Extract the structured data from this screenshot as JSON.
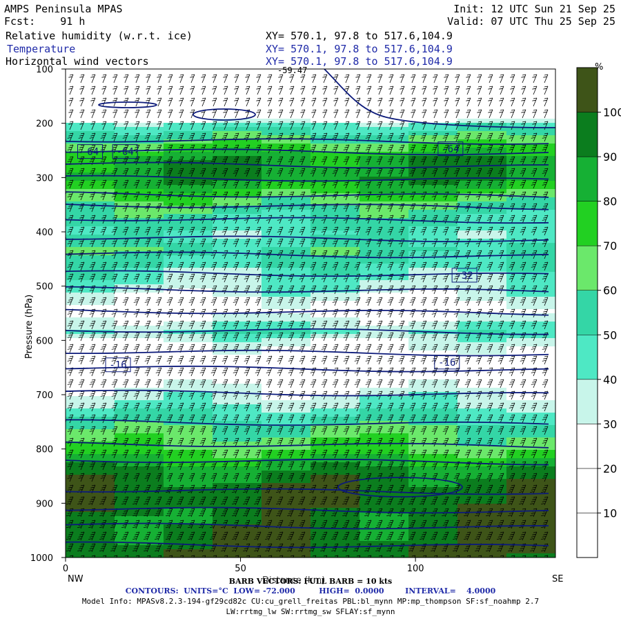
{
  "header": {
    "title": "AMPS Peninsula MPAS",
    "fcst": "Fcst:    91 h",
    "init": "Init: 12 UTC Sun 21 Sep 25",
    "valid": "Valid: 07 UTC Thu 25 Sep 25",
    "fields": [
      {
        "name": "Relative humidity (w.r.t. ice)",
        "xy": "XY= 570.1, 97.8 to 517.6,104.9",
        "color": "#000000"
      },
      {
        "name": "Temperature",
        "xy": "XY= 570.1, 97.8 to 517.6,104.9",
        "color": "#1f2aa8"
      },
      {
        "name": "Horizontal wind vectors",
        "xy": "XY= 570.1, 97.8 to 517.6,104.9",
        "color": "#000000"
      }
    ]
  },
  "chart_data": {
    "type": "heatmap",
    "title": "AMPS Peninsula MPAS",
    "xlabel": "Distance (km)",
    "ylabel": "Pressure (hPa)",
    "xlim": [
      0,
      140
    ],
    "ylim": [
      1000,
      100
    ],
    "x_ticks": [
      0,
      50,
      100
    ],
    "y_ticks": [
      100,
      200,
      300,
      400,
      500,
      600,
      700,
      800,
      900,
      1000
    ],
    "x_end_labels": {
      "left": "NW",
      "right": "SE"
    },
    "colorbar": {
      "unit": "%",
      "levels": [
        10,
        20,
        30,
        40,
        50,
        60,
        70,
        80,
        90,
        100
      ],
      "colors": [
        "#ffffff",
        "#ffffff",
        "#ffffff",
        "#c8f5ea",
        "#4ee8c4",
        "#34d6a6",
        "#6be86b",
        "#22d022",
        "#16b034",
        "#0b7d1e",
        "#3e5418"
      ]
    },
    "rh_profile": [
      {
        "p": 100,
        "rh": 5
      },
      {
        "p": 180,
        "rh": 10
      },
      {
        "p": 200,
        "rh": 45
      },
      {
        "p": 230,
        "rh": 65
      },
      {
        "p": 260,
        "rh": 85
      },
      {
        "p": 300,
        "rh": 90
      },
      {
        "p": 330,
        "rh": 70
      },
      {
        "p": 360,
        "rh": 55
      },
      {
        "p": 400,
        "rh": 45
      },
      {
        "p": 430,
        "rh": 55
      },
      {
        "p": 470,
        "rh": 45
      },
      {
        "p": 500,
        "rh": 38
      },
      {
        "p": 540,
        "rh": 20
      },
      {
        "p": 580,
        "rh": 45
      },
      {
        "p": 600,
        "rh": 30
      },
      {
        "p": 650,
        "rh": 15
      },
      {
        "p": 700,
        "rh": 35
      },
      {
        "p": 760,
        "rh": 60
      },
      {
        "p": 800,
        "rh": 72
      },
      {
        "p": 840,
        "rh": 92
      },
      {
        "p": 880,
        "rh": 100
      },
      {
        "p": 930,
        "rh": 95
      },
      {
        "p": 1000,
        "rh": 100
      }
    ],
    "temperature_contours": {
      "units": "°C",
      "interval": 4.0,
      "levels_p": [
        230,
        250,
        275,
        300,
        330,
        350,
        375,
        410,
        440,
        475,
        505,
        545,
        580,
        620,
        650,
        695,
        750,
        790,
        820,
        875,
        910,
        940,
        975
      ],
      "labels": [
        {
          "text": "-64",
          "x": 7,
          "p": 252
        },
        {
          "text": "-64",
          "x": 17,
          "p": 252
        },
        {
          "text": "-64",
          "x": 110,
          "p": 247
        },
        {
          "text": "-32",
          "x": 114,
          "p": 480
        },
        {
          "text": "-16",
          "x": 15,
          "p": 645
        },
        {
          "text": "-16",
          "x": 109,
          "p": 640
        }
      ],
      "low": -72.0,
      "high": 0.0
    },
    "top_label": "-59.47",
    "barb_note": "BARB VECTORS: FULL BARB = 10 kts"
  },
  "footer": {
    "contours": "CONTOURS:  UNITS=°C  LOW= -72.000         HIGH=  0.0000        INTERVAL=    4.0000",
    "model_info": "Model Info: MPASv8.2.3-194-gf29cd82c CU:cu_grell_freitas PBL:bl_mynn MP:mp_thompson SF:sf_noahmp 2.7",
    "model_info_2": "LW:rrtmg_lw SW:rrtmg_sw SFLAY:sf_mynn"
  }
}
